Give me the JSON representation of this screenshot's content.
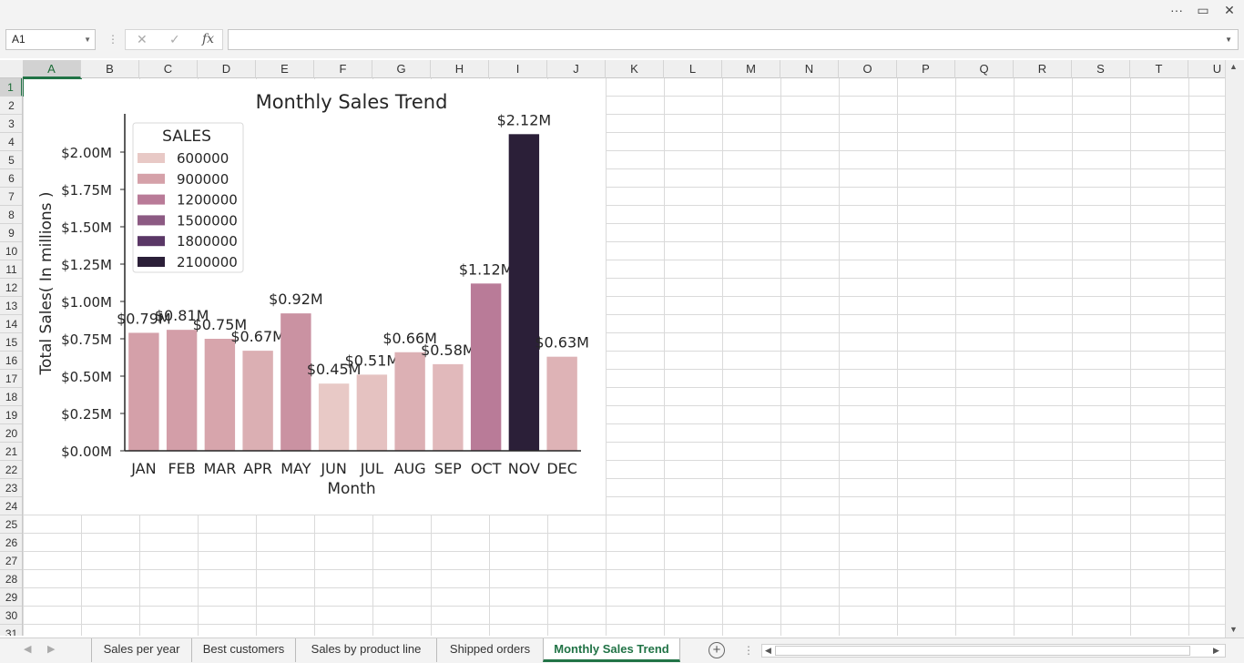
{
  "window": {
    "more_glyph": "···",
    "restore_glyph": "▭",
    "close_glyph": "✕"
  },
  "formula_bar": {
    "name_box": "A1",
    "cancel_glyph": "✕",
    "enter_glyph": "✓",
    "fx_glyph": "fx",
    "formula": ""
  },
  "columns": [
    "A",
    "B",
    "C",
    "D",
    "E",
    "F",
    "G",
    "H",
    "I",
    "J",
    "K",
    "L",
    "M",
    "N",
    "O",
    "P",
    "Q",
    "R",
    "S",
    "T",
    "U"
  ],
  "rows": [
    "1",
    "2",
    "3",
    "4",
    "5",
    "6",
    "7",
    "8",
    "9",
    "10",
    "11",
    "12",
    "13",
    "14",
    "15",
    "16",
    "17",
    "18",
    "19",
    "20",
    "21",
    "22",
    "23",
    "24",
    "25",
    "26",
    "27",
    "28",
    "29",
    "30",
    "31"
  ],
  "sheet_tabs": [
    "Sales per year",
    "Best customers",
    "Sales by product line",
    "Shipped orders",
    "Monthly Sales Trend"
  ],
  "active_tab": "Monthly Sales Trend",
  "chart_data": {
    "type": "bar",
    "title": "Monthly Sales Trend",
    "xlabel": "Month",
    "ylabel": "Total Sales( In millions )",
    "categories": [
      "JAN",
      "FEB",
      "MAR",
      "APR",
      "MAY",
      "JUN",
      "JUL",
      "AUG",
      "SEP",
      "OCT",
      "NOV",
      "DEC"
    ],
    "values": [
      0.79,
      0.81,
      0.75,
      0.67,
      0.92,
      0.45,
      0.51,
      0.66,
      0.58,
      1.12,
      2.12,
      0.63
    ],
    "value_labels": [
      "$0.79M",
      "$0.81M",
      "$0.75M",
      "$0.67M",
      "$0.92M",
      "$0.45M",
      "$0.51M",
      "$0.66M",
      "$0.58M",
      "$1.12M",
      "$2.12M",
      "$0.63M"
    ],
    "ylim": [
      0,
      2.25
    ],
    "yticks": [
      0,
      0.25,
      0.5,
      0.75,
      1.0,
      1.25,
      1.5,
      1.75,
      2.0
    ],
    "ytick_labels": [
      "$0.00M",
      "$0.25M",
      "$0.50M",
      "$0.75M",
      "$1.00M",
      "$1.25M",
      "$1.50M",
      "$1.75M",
      "$2.00M"
    ],
    "grid": false,
    "legend": {
      "title": "SALES",
      "placement": "upper-left",
      "entries": [
        "600000",
        "900000",
        "1200000",
        "1500000",
        "1800000",
        "2100000"
      ],
      "colors": [
        "#e8c9c6",
        "#d5a1a9",
        "#b97b98",
        "#8c5a83",
        "#5a3766",
        "#2b1f38"
      ]
    },
    "hue_range": [
      450000,
      2120000
    ]
  }
}
